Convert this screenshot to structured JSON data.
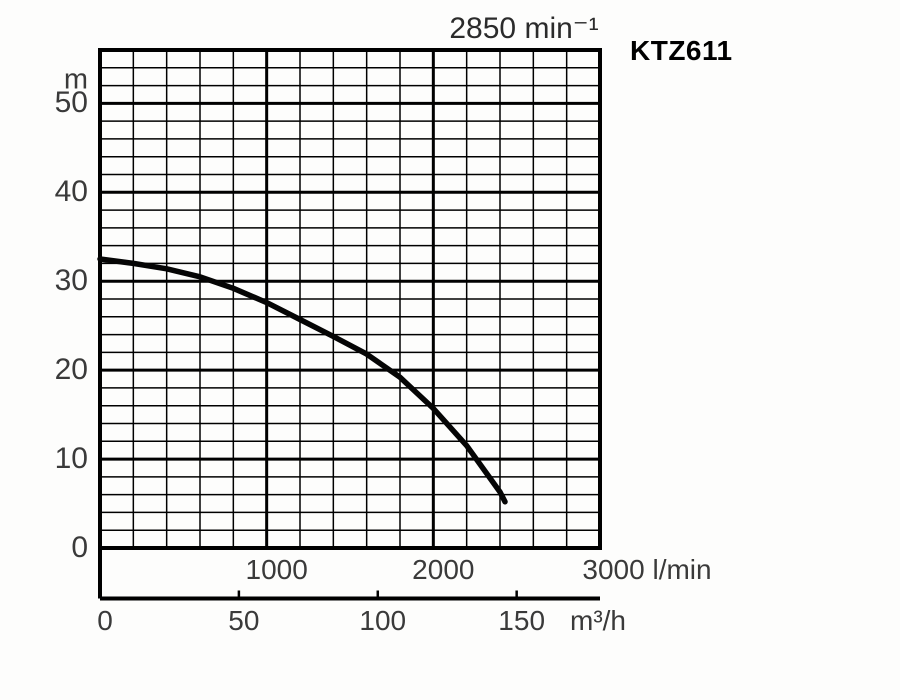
{
  "header": {
    "speed": "2850 min⁻¹",
    "model": "KTZ611"
  },
  "chart_data": {
    "type": "line",
    "title": "2850 min⁻¹",
    "series_name": "KTZ611",
    "grid": "on",
    "legend": "none",
    "y_axis": {
      "unit": "m",
      "min": 0,
      "max": 56,
      "minor_step": 2,
      "major_step": 10,
      "ticks": [
        0,
        10,
        20,
        30,
        40,
        50
      ]
    },
    "x_axis_primary": {
      "unit": "l/min",
      "min": 0,
      "max": 3000,
      "minor_step": 200,
      "major_step": 1000,
      "ticks": [
        1000,
        2000,
        3000
      ]
    },
    "x_axis_secondary": {
      "unit": "m³/h",
      "ticks": [
        0,
        50,
        100,
        150
      ],
      "lmin_per_unit": 16.6667
    },
    "curve_points_lmin_m": [
      [
        0,
        32.5
      ],
      [
        200,
        32.0
      ],
      [
        400,
        31.4
      ],
      [
        600,
        30.5
      ],
      [
        800,
        29.2
      ],
      [
        1000,
        27.6
      ],
      [
        1200,
        25.7
      ],
      [
        1400,
        23.8
      ],
      [
        1600,
        21.8
      ],
      [
        1800,
        19.2
      ],
      [
        2000,
        15.7
      ],
      [
        2200,
        11.5
      ],
      [
        2400,
        6.3
      ],
      [
        2430,
        5.2
      ]
    ]
  }
}
